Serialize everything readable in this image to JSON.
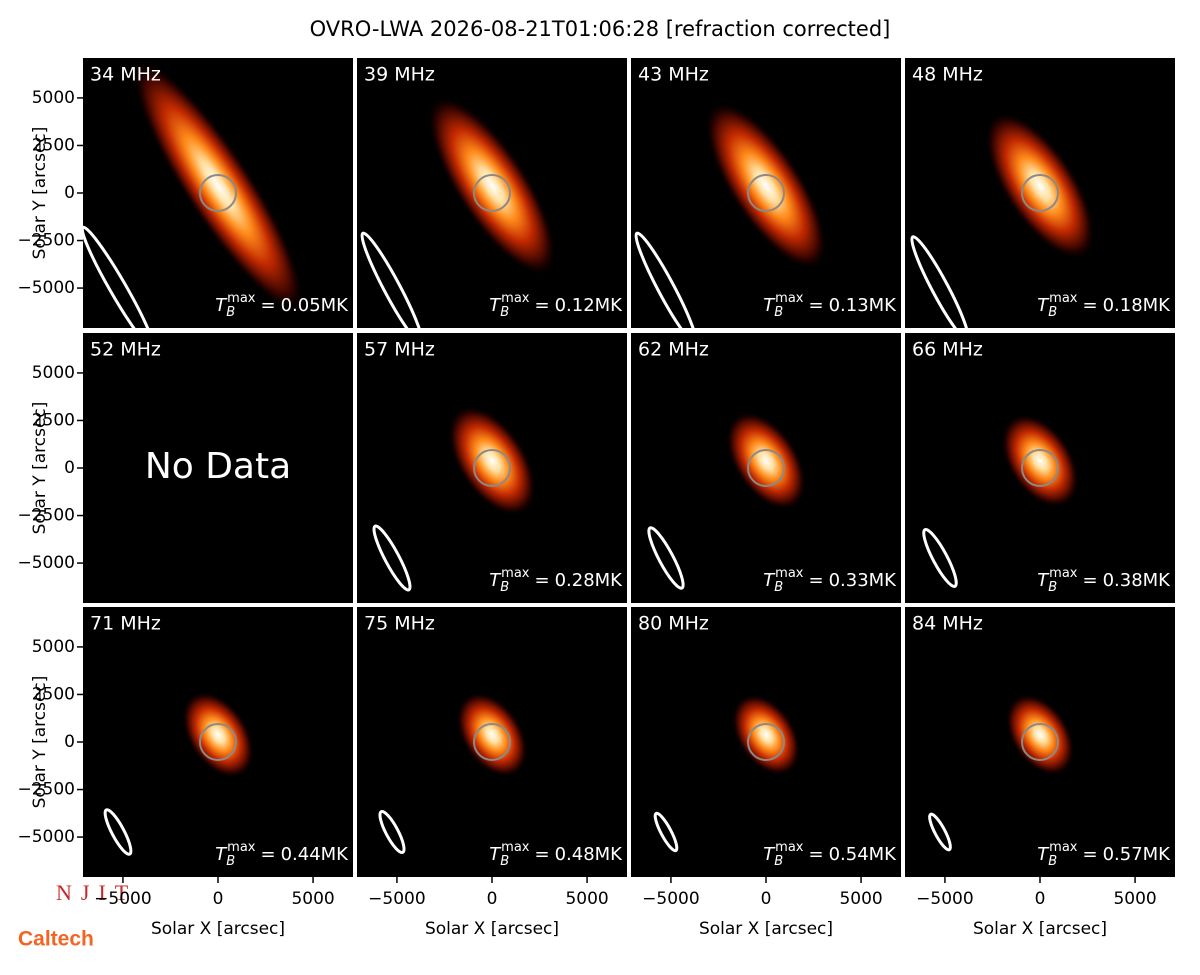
{
  "chart_data": {
    "type": "image-grid",
    "title": "OVRO-LWA 2026-08-21T01:06:28 [refraction corrected]",
    "xlabel": "Solar X [arcsec]",
    "ylabel": "Solar Y [arcsec]",
    "xlim": [
      -7100,
      7100
    ],
    "ylim": [
      -7100,
      7100
    ],
    "xticks": [
      {
        "value": -5000,
        "label": "−5000"
      },
      0,
      5000
    ],
    "yticks": [
      {
        "value": -5000,
        "label": "−5000"
      },
      {
        "value": -2500,
        "label": "−2500"
      },
      0,
      2500,
      5000
    ],
    "tb_symbol": "T",
    "tb_sub": "B",
    "tb_sup": "max",
    "tb_eq": "=",
    "no_data": "No Data",
    "panels": [
      {
        "frequency": "34 MHz",
        "tb_max": "0.05MK"
      },
      {
        "frequency": "39 MHz",
        "tb_max": "0.12MK"
      },
      {
        "frequency": "43 MHz",
        "tb_max": "0.13MK"
      },
      {
        "frequency": "48 MHz",
        "tb_max": "0.18MK"
      },
      {
        "frequency": "52 MHz",
        "tb_max": null
      },
      {
        "frequency": "57 MHz",
        "tb_max": "0.28MK"
      },
      {
        "frequency": "62 MHz",
        "tb_max": "0.33MK"
      },
      {
        "frequency": "66 MHz",
        "tb_max": "0.38MK"
      },
      {
        "frequency": "71 MHz",
        "tb_max": "0.44MK"
      },
      {
        "frequency": "75 MHz",
        "tb_max": "0.48MK"
      },
      {
        "frequency": "80 MHz",
        "tb_max": "0.54MK"
      },
      {
        "frequency": "84 MHz",
        "tb_max": "0.57MK"
      }
    ],
    "logos": [
      "NJIT",
      "Caltech"
    ]
  }
}
